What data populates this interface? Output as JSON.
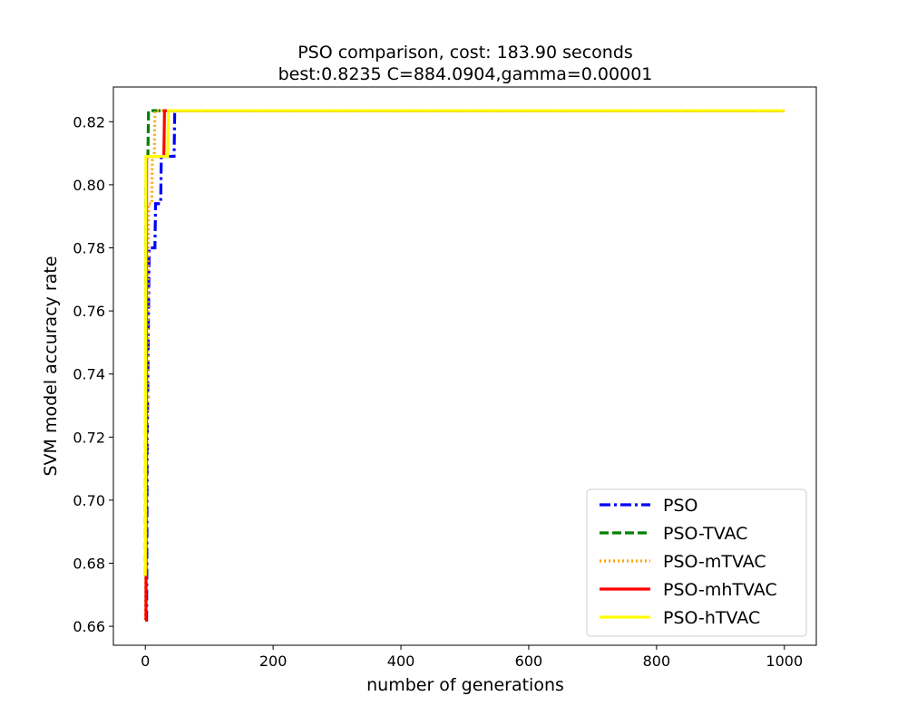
{
  "chart_data": {
    "type": "line",
    "title": "PSO comparison, cost: 183.90 seconds",
    "subtitle": "best:0.8235  C=884.0904,gamma=0.00001",
    "xlabel": "number of generations",
    "ylabel": "SVM model accuracy rate",
    "xlim": [
      -50,
      1050
    ],
    "ylim": [
      0.654,
      0.831
    ],
    "xticks": [
      0,
      200,
      400,
      600,
      800,
      1000
    ],
    "xtick_labels": [
      "0",
      "200",
      "400",
      "600",
      "800",
      "1000"
    ],
    "yticks": [
      0.66,
      0.68,
      0.7,
      0.72,
      0.74,
      0.76,
      0.78,
      0.8,
      0.82
    ],
    "ytick_labels": [
      "0.66",
      "0.68",
      "0.70",
      "0.72",
      "0.74",
      "0.76",
      "0.78",
      "0.80",
      "0.82"
    ],
    "grid": false,
    "legend_position": "bottom-right",
    "series": [
      {
        "name": "PSO",
        "color": "#0000ff",
        "style": "dashdot",
        "points": [
          [
            0,
            0.662
          ],
          [
            2,
            0.662
          ],
          [
            3,
            0.72
          ],
          [
            5,
            0.76
          ],
          [
            6,
            0.78
          ],
          [
            15,
            0.78
          ],
          [
            16,
            0.794
          ],
          [
            24,
            0.794
          ],
          [
            25,
            0.809
          ],
          [
            45,
            0.809
          ],
          [
            46,
            0.8235
          ],
          [
            1000,
            0.8235
          ]
        ]
      },
      {
        "name": "PSO-TVAC",
        "color": "#008000",
        "style": "dashed",
        "points": [
          [
            0,
            0.676
          ],
          [
            1,
            0.8
          ],
          [
            2,
            0.809
          ],
          [
            4,
            0.809
          ],
          [
            5,
            0.8235
          ],
          [
            1000,
            0.8235
          ]
        ]
      },
      {
        "name": "PSO-mTVAC",
        "color": "#ffa500",
        "style": "dotted",
        "points": [
          [
            0,
            0.662
          ],
          [
            2,
            0.7
          ],
          [
            4,
            0.76
          ],
          [
            5,
            0.794
          ],
          [
            10,
            0.794
          ],
          [
            11,
            0.809
          ],
          [
            14,
            0.809
          ],
          [
            15,
            0.8235
          ],
          [
            1000,
            0.8235
          ]
        ]
      },
      {
        "name": "PSO-mhTVAC",
        "color": "#ff0000",
        "style": "solid",
        "points": [
          [
            0,
            0.662
          ],
          [
            1,
            0.662
          ],
          [
            2,
            0.809
          ],
          [
            29,
            0.809
          ],
          [
            30,
            0.8235
          ],
          [
            1000,
            0.8235
          ]
        ]
      },
      {
        "name": "PSO-hTVAC",
        "color": "#ffff00",
        "style": "solid",
        "points": [
          [
            0,
            0.676
          ],
          [
            1,
            0.809
          ],
          [
            35,
            0.809
          ],
          [
            36,
            0.8235
          ],
          [
            1000,
            0.8235
          ]
        ]
      }
    ]
  }
}
